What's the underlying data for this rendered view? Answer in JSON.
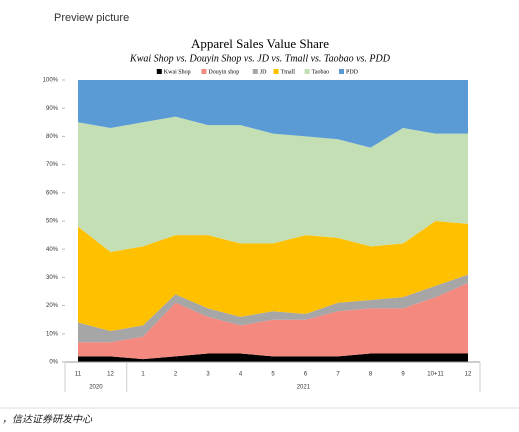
{
  "preview_label": "Preview picture",
  "source": "，信达证券研发中心",
  "chart_data": {
    "type": "stacked_area",
    "title": "Apparel Sales Value Share",
    "subtitle": "Kwai Shop vs. Douyin Shop vs. JD vs. Tmall vs. Taobao vs. PDD",
    "categories": [
      "11",
      "12",
      "1",
      "2",
      "3",
      "4",
      "5",
      "6",
      "7",
      "8",
      "9",
      "10+11",
      "12"
    ],
    "year_groups": [
      {
        "label": "2020",
        "span": 2
      },
      {
        "label": "2021",
        "span": 11
      }
    ],
    "series": [
      {
        "name": "Kwai Shop",
        "color": "#000000",
        "values": [
          2,
          2,
          1,
          2,
          3,
          3,
          2,
          2,
          2,
          3,
          3,
          3,
          3
        ]
      },
      {
        "name": "Douyin shop",
        "color": "#f4897f",
        "values": [
          5,
          5,
          8,
          19,
          13,
          10,
          13,
          13,
          16,
          16,
          16,
          20,
          25
        ]
      },
      {
        "name": "JD",
        "color": "#a6a6a6",
        "values": [
          7,
          4,
          4,
          3,
          3,
          3,
          3,
          2,
          3,
          3,
          4,
          4,
          3
        ]
      },
      {
        "name": "Tmall",
        "color": "#ffc000",
        "values": [
          34,
          28,
          28,
          21,
          26,
          26,
          24,
          28,
          23,
          19,
          19,
          23,
          18
        ]
      },
      {
        "name": "Taobao",
        "color": "#c5dfb4",
        "values": [
          37,
          44,
          44,
          42,
          39,
          42,
          39,
          35,
          35,
          35,
          41,
          31,
          32
        ]
      },
      {
        "name": "PDD",
        "color": "#5b9bd5",
        "values": [
          15,
          17,
          15,
          13,
          16,
          16,
          19,
          20,
          21,
          24,
          17,
          19,
          19
        ]
      }
    ],
    "ylim": [
      0,
      100
    ],
    "yticks": [
      {
        "value": 0,
        "label": "0%"
      },
      {
        "value": 10,
        "label": "10%"
      },
      {
        "value": 20,
        "label": "20%"
      },
      {
        "value": 30,
        "label": "30%"
      },
      {
        "value": 40,
        "label": "40%"
      },
      {
        "value": 50,
        "label": "50%"
      },
      {
        "value": 60,
        "label": "60%"
      },
      {
        "value": 70,
        "label": "70%"
      },
      {
        "value": 80,
        "label": "80%"
      },
      {
        "value": 90,
        "label": "90%"
      },
      {
        "value": 100,
        "label": "100%"
      }
    ],
    "legend": "top"
  }
}
